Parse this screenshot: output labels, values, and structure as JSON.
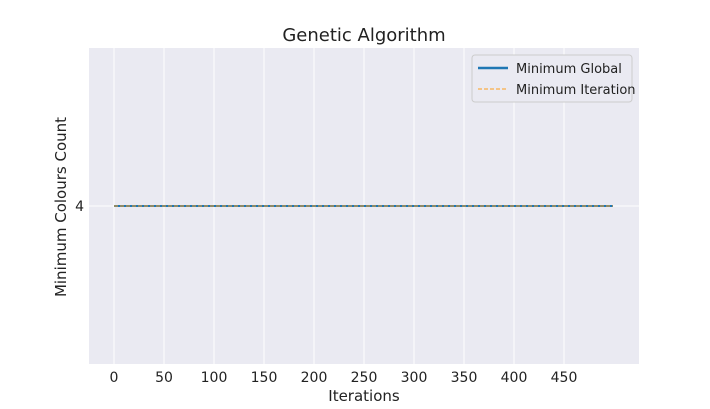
{
  "chart_data": {
    "type": "line",
    "title": "Genetic Algorithm",
    "xlabel": "Iterations",
    "ylabel": "Minimum Colours Count",
    "xlim": [
      -25,
      525
    ],
    "ylim": [
      3,
      5
    ],
    "xticks": [
      0,
      50,
      100,
      150,
      200,
      250,
      300,
      350,
      400,
      450
    ],
    "yticks": [
      4
    ],
    "grid": true,
    "legend_position": "top-right",
    "background": "#eaeaf2",
    "series": [
      {
        "name": "Minimum Global",
        "color": "#1f77b4",
        "style": "solid",
        "x": [
          0,
          499
        ],
        "y": [
          4,
          4
        ]
      },
      {
        "name": "Minimum Iteration",
        "color": "#ff9f1c",
        "style": "dashed",
        "x": [
          0,
          499
        ],
        "y": [
          4,
          4
        ]
      }
    ]
  }
}
